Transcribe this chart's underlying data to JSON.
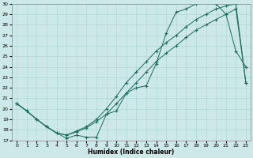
{
  "xlabel": "Humidex (Indice chaleur)",
  "bg_color": "#cce8e8",
  "line_color": "#1a6b5a",
  "xlim": [
    -0.5,
    23.5
  ],
  "ylim": [
    17,
    30
  ],
  "x_ticks": [
    0,
    1,
    2,
    3,
    4,
    5,
    6,
    7,
    8,
    9,
    10,
    11,
    12,
    13,
    14,
    15,
    16,
    17,
    18,
    19,
    20,
    21,
    22,
    23
  ],
  "y_ticks": [
    17,
    18,
    19,
    20,
    21,
    22,
    23,
    24,
    25,
    26,
    27,
    28,
    29,
    30
  ],
  "line1_x": [
    0,
    1,
    2,
    3,
    4,
    5,
    6,
    7,
    8,
    9,
    10,
    11,
    12,
    13,
    14,
    15,
    16,
    17,
    18,
    19,
    20,
    21,
    22,
    23
  ],
  "line1_y": [
    20.5,
    19.8,
    19.0,
    18.3,
    17.7,
    17.2,
    17.5,
    17.3,
    17.3,
    19.5,
    19.8,
    21.5,
    22.0,
    22.2,
    24.3,
    27.2,
    29.2,
    29.5,
    30.0,
    30.2,
    30.0,
    29.0,
    25.5,
    24.0
  ],
  "line2_x": [
    0,
    1,
    2,
    3,
    4,
    5,
    6,
    7,
    8,
    9,
    10,
    11,
    12,
    13,
    14,
    15,
    16,
    17,
    18,
    19,
    20,
    21,
    22,
    23
  ],
  "line2_y": [
    20.5,
    19.8,
    19.0,
    18.3,
    17.7,
    17.5,
    17.9,
    18.3,
    19.0,
    20.0,
    21.2,
    22.5,
    23.5,
    24.5,
    25.5,
    26.3,
    27.0,
    27.8,
    28.5,
    29.0,
    29.5,
    29.8,
    30.0,
    22.5
  ],
  "line3_x": [
    0,
    1,
    2,
    3,
    4,
    5,
    6,
    7,
    8,
    9,
    10,
    11,
    12,
    13,
    14,
    15,
    16,
    17,
    18,
    19,
    20,
    21,
    22,
    23
  ],
  "line3_y": [
    20.5,
    19.8,
    19.0,
    18.3,
    17.7,
    17.5,
    17.8,
    18.2,
    18.8,
    19.5,
    20.5,
    21.5,
    22.5,
    23.5,
    24.5,
    25.3,
    26.0,
    26.8,
    27.5,
    28.0,
    28.5,
    29.0,
    29.5,
    22.5
  ]
}
